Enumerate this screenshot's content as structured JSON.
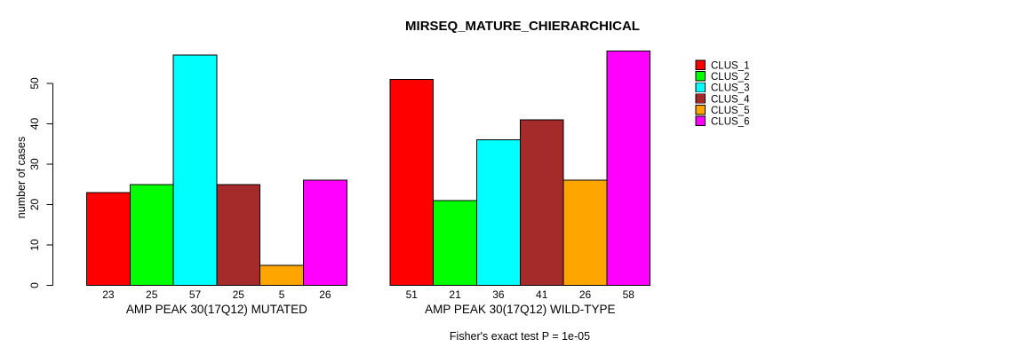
{
  "chart_data": {
    "type": "bar",
    "title": "MIRSEQ_MATURE_CHIERARCHICAL",
    "ylabel": "number of cases",
    "caption": "Fisher's exact test P = 1e-05",
    "categories": [
      "AMP PEAK 30(17Q12) MUTATED",
      "AMP PEAK 30(17Q12) WILD-TYPE"
    ],
    "series": [
      {
        "name": "CLUS_1",
        "color": "#FF0000",
        "values": [
          23,
          51
        ]
      },
      {
        "name": "CLUS_2",
        "color": "#00FF00",
        "values": [
          25,
          21
        ]
      },
      {
        "name": "CLUS_3",
        "color": "#00FFFF",
        "values": [
          57,
          36
        ]
      },
      {
        "name": "CLUS_4",
        "color": "#A52A2A",
        "values": [
          25,
          41
        ]
      },
      {
        "name": "CLUS_5",
        "color": "#FFA500",
        "values": [
          5,
          26
        ]
      },
      {
        "name": "CLUS_6",
        "color": "#FF00FF",
        "values": [
          26,
          58
        ]
      }
    ],
    "yticks": [
      0,
      10,
      20,
      30,
      40,
      50
    ],
    "ylim": [
      0,
      58
    ],
    "grid": false,
    "legend_position": "top-right",
    "show_values_below_bars": true,
    "text_color": "#000000",
    "background_color": "#FFFFFF"
  }
}
